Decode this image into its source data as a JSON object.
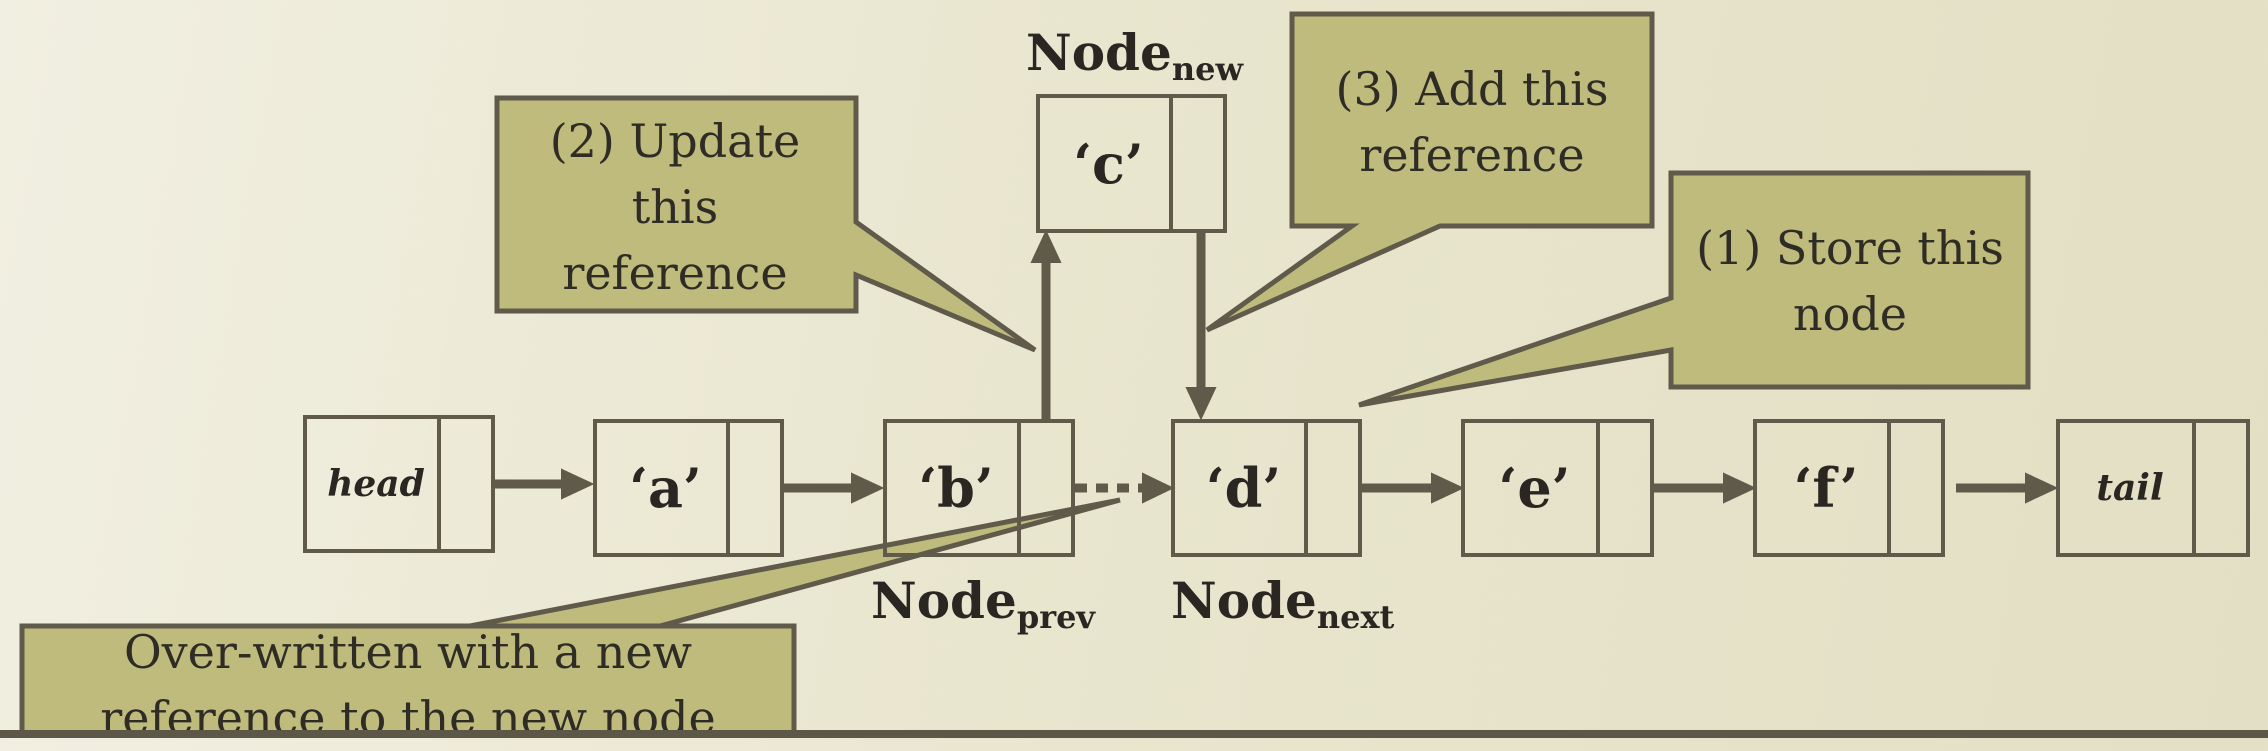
{
  "nodes": {
    "head": "head",
    "a": "‘a’",
    "b": "‘b’",
    "c": "‘c’",
    "d": "‘d’",
    "e": "‘e’",
    "f": "‘f’",
    "tail": "tail"
  },
  "labels": {
    "node_word": "Node",
    "new_sub": "new",
    "prev_sub": "prev",
    "next_sub": "next"
  },
  "callouts": {
    "update_line1": "(2) Update",
    "update_line2": "this",
    "update_line3": "reference",
    "add_line1": "(3) Add this",
    "add_line2": "reference",
    "store_line1": "(1) Store this",
    "store_line2": "node",
    "over_line1": "Over-written with a new",
    "over_line2": "reference to the new node"
  },
  "colors": {
    "callout_fill": "#bfbb7d",
    "stroke": "#5f5a4a",
    "text": "#2a2723"
  }
}
